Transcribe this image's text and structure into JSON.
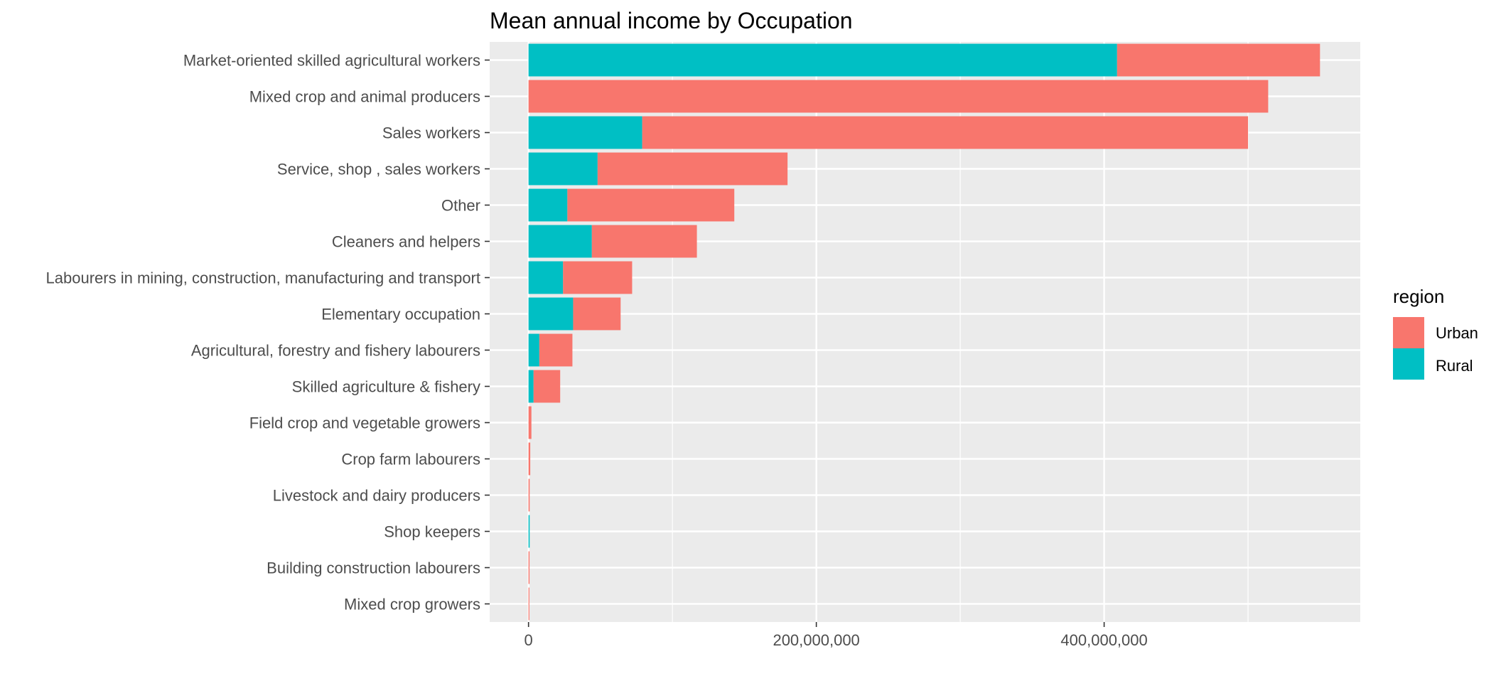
{
  "chart_data": {
    "type": "bar",
    "orientation": "horizontal",
    "stacked": true,
    "title": "Mean annual income by Occupation",
    "xlabel": "",
    "ylabel": "",
    "xlim": [
      -27000000,
      578000000
    ],
    "x_ticks": [
      0,
      200000000,
      400000000
    ],
    "x_tick_labels": [
      "0",
      "200,000,000",
      "400,000,000"
    ],
    "grid": true,
    "legend": {
      "title": "region",
      "position": "right",
      "entries": [
        {
          "name": "Urban",
          "color": "#F8766D"
        },
        {
          "name": "Rural",
          "color": "#00BFC4"
        }
      ]
    },
    "categories": [
      "Market-oriented skilled agricultural workers",
      "Mixed crop and animal producers",
      "Sales workers",
      "Service, shop , sales workers",
      "Other",
      "Cleaners and helpers",
      "Labourers in mining, construction, manufacturing and transport",
      "Elementary occupation",
      "Agricultural, forestry and fishery labourers",
      "Skilled agriculture & fishery",
      "Field crop and vegetable growers",
      "Crop farm labourers",
      "Livestock and dairy producers",
      "Shop keepers",
      "Building construction labourers",
      "Mixed crop growers"
    ],
    "series": [
      {
        "name": "Rural",
        "color": "#00BFC4",
        "values": [
          409000000,
          0,
          79000000,
          48000000,
          27000000,
          44000000,
          24000000,
          31000000,
          7500000,
          3500000,
          0,
          0,
          0,
          800000,
          0,
          0
        ]
      },
      {
        "name": "Urban",
        "color": "#F8766D",
        "values": [
          141000000,
          514000000,
          421000000,
          132000000,
          116000000,
          73000000,
          48000000,
          33000000,
          23000000,
          18500000,
          2000000,
          1200000,
          800000,
          0,
          700000,
          600000
        ]
      }
    ]
  }
}
